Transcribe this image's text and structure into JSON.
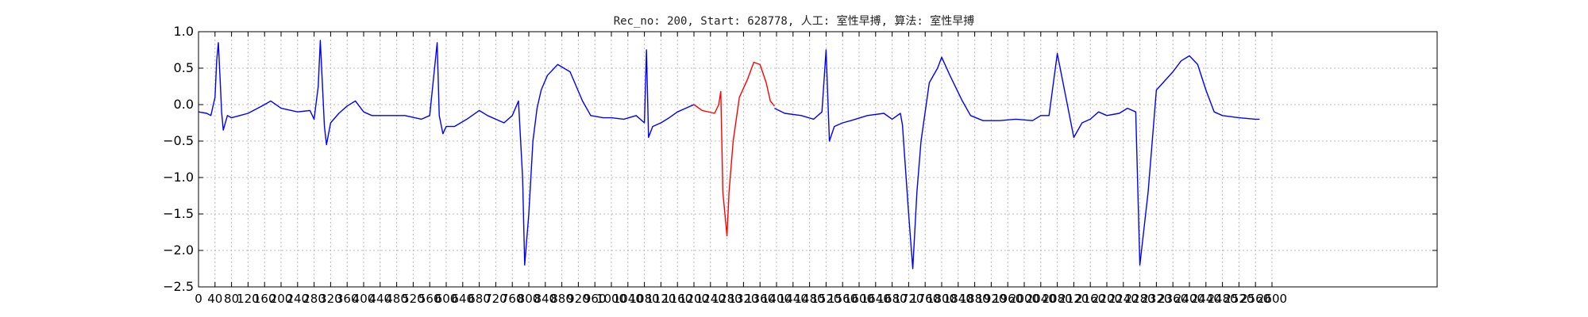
{
  "chart_data": {
    "type": "line",
    "title": "Rec_no: 200, Start: 628778, 人工: 室性早搏, 算法: 室性早搏",
    "xlabel": "",
    "ylabel": "",
    "xlim": [
      0,
      3000
    ],
    "ylim": [
      -2.5,
      1.0
    ],
    "grid": true,
    "yticks": [
      1.0,
      0.5,
      0.0,
      -0.5,
      -1.0,
      -1.5,
      -2.0,
      -2.5
    ],
    "ytick_labels": [
      "1.0",
      "0.5",
      "0.0",
      "−0.5",
      "−1.0",
      "−1.5",
      "−2.0",
      "−2.5"
    ],
    "xticks": [
      0,
      40,
      80,
      120,
      160,
      200,
      240,
      280,
      320,
      360,
      400,
      440,
      480,
      520,
      560,
      600,
      640,
      680,
      720,
      760,
      800,
      840,
      880,
      920,
      960,
      1000,
      1040,
      1080,
      1120,
      1160,
      1200,
      1240,
      1280,
      1320,
      1360,
      1400,
      1440,
      1480,
      1520,
      1560,
      1600,
      1640,
      1680,
      1720,
      1760,
      1800,
      1840,
      1880,
      1920,
      1960,
      2000,
      2040,
      2080,
      2120,
      2160,
      2200,
      2240,
      2280,
      2320,
      2360,
      2400,
      2440,
      2480,
      2520,
      2560,
      2600
    ],
    "series": [
      {
        "color": "#0000ff",
        "x": [
          0,
          20,
          30,
          40,
          44,
          48,
          52,
          56,
          60,
          70,
          80,
          100,
          120,
          160,
          175,
          200,
          240,
          270,
          280,
          290,
          295,
          305,
          310,
          320,
          340,
          360,
          380,
          400,
          420,
          460,
          500,
          540,
          560,
          578,
          583,
          592,
          600,
          620,
          650,
          680,
          700,
          740,
          760,
          775,
          785,
          790,
          800,
          810,
          820,
          830,
          845,
          870,
          900,
          930,
          950,
          980,
          1000,
          1030,
          1060,
          1080,
          1085,
          1090,
          1100,
          1120,
          1140,
          1160,
          1180,
          1200
        ],
        "y": [
          -0.1,
          -0.12,
          -0.15,
          0.1,
          0.6,
          0.85,
          0.4,
          -0.1,
          -0.35,
          -0.15,
          -0.18,
          -0.15,
          -0.12,
          0.0,
          0.05,
          -0.05,
          -0.1,
          -0.08,
          -0.2,
          0.25,
          0.88,
          -0.3,
          -0.55,
          -0.25,
          -0.12,
          -0.02,
          0.05,
          -0.1,
          -0.15,
          -0.15,
          -0.15,
          -0.2,
          -0.15,
          0.85,
          -0.15,
          -0.4,
          -0.3,
          -0.3,
          -0.2,
          -0.08,
          -0.15,
          -0.25,
          -0.15,
          0.05,
          -1.0,
          -2.2,
          -1.5,
          -0.5,
          -0.05,
          0.2,
          0.4,
          0.55,
          0.45,
          0.05,
          -0.15,
          -0.18,
          -0.18,
          -0.2,
          -0.15,
          -0.25,
          0.75,
          -0.45,
          -0.3,
          -0.25,
          -0.18,
          -0.1,
          -0.05,
          0.0
        ]
      },
      {
        "color": "#ff0000",
        "x": [
          1200,
          1220,
          1250,
          1260,
          1265,
          1270,
          1280,
          1285,
          1295,
          1300,
          1310,
          1330,
          1345,
          1360,
          1375,
          1385,
          1395
        ],
        "y": [
          0.0,
          -0.08,
          -0.12,
          0.0,
          0.18,
          -1.2,
          -1.8,
          -1.2,
          -0.5,
          -0.3,
          0.1,
          0.35,
          0.58,
          0.55,
          0.3,
          0.05,
          -0.02
        ]
      },
      {
        "color": "#0000ff",
        "x": [
          1395,
          1420,
          1460,
          1490,
          1510,
          1520,
          1528,
          1540,
          1560,
          1580,
          1620,
          1660,
          1680,
          1700,
          1705,
          1720,
          1730,
          1740,
          1750,
          1770,
          1790,
          1800,
          1820,
          1850,
          1870,
          1900,
          1940,
          1980,
          2020,
          2040,
          2060,
          2080,
          2120,
          2140,
          2160,
          2180,
          2200,
          2230,
          2250,
          2270,
          2280,
          2300,
          2320,
          2360,
          2380,
          2400,
          2420,
          2440,
          2460,
          2480,
          2520,
          2560,
          2570
        ],
        "y": [
          -0.05,
          -0.12,
          -0.15,
          -0.2,
          -0.1,
          0.75,
          -0.5,
          -0.3,
          -0.25,
          -0.22,
          -0.15,
          -0.12,
          -0.2,
          -0.12,
          -0.28,
          -1.5,
          -2.25,
          -1.2,
          -0.5,
          0.3,
          0.5,
          0.65,
          0.4,
          0.05,
          -0.15,
          -0.22,
          -0.22,
          -0.2,
          -0.22,
          -0.15,
          -0.15,
          0.7,
          -0.45,
          -0.25,
          -0.2,
          -0.1,
          -0.15,
          -0.12,
          -0.05,
          -0.1,
          -2.2,
          -1.2,
          0.2,
          0.45,
          0.6,
          0.67,
          0.55,
          0.2,
          -0.1,
          -0.15,
          -0.18,
          -0.2,
          -0.2
        ]
      }
    ]
  }
}
